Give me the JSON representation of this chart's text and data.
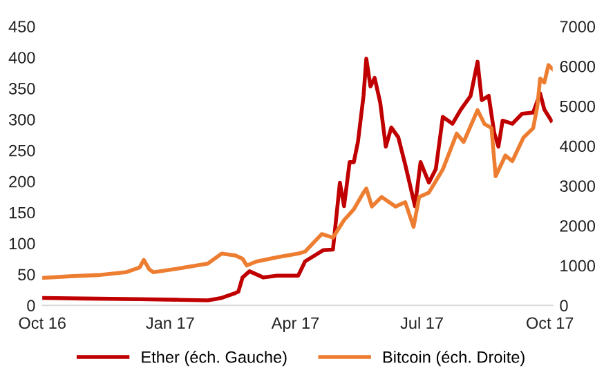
{
  "chart_data": {
    "type": "line",
    "legend": "bottom",
    "grid": false,
    "marker": "none",
    "line_style": "solid",
    "xlim": [
      "2016-10-01",
      "2017-10-03"
    ],
    "xticks": [
      {
        "value": "2016-10-01",
        "label": "Oct 16"
      },
      {
        "value": "2017-01-01",
        "label": "Jan 17"
      },
      {
        "value": "2017-04-01",
        "label": "Apr 17"
      },
      {
        "value": "2017-07-01",
        "label": "Jul 17"
      },
      {
        "value": "2017-10-01",
        "label": "Oct 17"
      }
    ],
    "ylim": [
      0,
      450
    ],
    "yticks": [
      0,
      50,
      100,
      150,
      200,
      250,
      300,
      350,
      400,
      450
    ],
    "y2lim": [
      0,
      7000
    ],
    "y2ticks": [
      0,
      1000,
      2000,
      3000,
      4000,
      5000,
      6000,
      7000
    ],
    "series": [
      {
        "name": "Ether (éch. Gauche)",
        "color": "#c00000",
        "axis": "y",
        "x": [
          "2016-10-01",
          "2016-10-31",
          "2016-12-10",
          "2017-01-08",
          "2017-01-28",
          "2017-02-07",
          "2017-02-17",
          "2017-02-19",
          "2017-02-22",
          "2017-02-27",
          "2017-03-09",
          "2017-03-19",
          "2017-03-31",
          "2017-04-03",
          "2017-04-08",
          "2017-04-21",
          "2017-04-28",
          "2017-05-03",
          "2017-05-06",
          "2017-05-10",
          "2017-05-13",
          "2017-05-16",
          "2017-05-20",
          "2017-05-22",
          "2017-05-25",
          "2017-05-28",
          "2017-06-01",
          "2017-06-05",
          "2017-06-09",
          "2017-06-14",
          "2017-06-19",
          "2017-06-26",
          "2017-06-30",
          "2017-07-06",
          "2017-07-11",
          "2017-07-16",
          "2017-07-23",
          "2017-07-29",
          "2017-08-05",
          "2017-08-10",
          "2017-08-13",
          "2017-08-18",
          "2017-08-22",
          "2017-08-25",
          "2017-08-28",
          "2017-09-04",
          "2017-09-11",
          "2017-09-19",
          "2017-09-24",
          "2017-09-27",
          "2017-10-02"
        ],
        "values": [
          12,
          11,
          10,
          9,
          8,
          12,
          20,
          22,
          45,
          55,
          45,
          48,
          48,
          48,
          71,
          89,
          90,
          198,
          160,
          231,
          231,
          264,
          338,
          398,
          353,
          367,
          327,
          256,
          287,
          271,
          227,
          160,
          231,
          198,
          220,
          304,
          293,
          316,
          338,
          393,
          331,
          338,
          278,
          256,
          298,
          293,
          309,
          311,
          342,
          316,
          298
        ]
      },
      {
        "name": "Bitcoin (éch. Droite)",
        "color": "#ed7d31",
        "axis": "y2",
        "x": [
          "2016-10-01",
          "2016-10-21",
          "2016-11-10",
          "2016-11-30",
          "2016-12-10",
          "2016-12-13",
          "2016-12-17",
          "2016-12-20",
          "2017-01-08",
          "2017-01-28",
          "2017-02-07",
          "2017-02-17",
          "2017-02-22",
          "2017-02-25",
          "2017-03-04",
          "2017-03-19",
          "2017-04-03",
          "2017-04-08",
          "2017-04-20",
          "2017-04-28",
          "2017-05-06",
          "2017-05-13",
          "2017-05-20",
          "2017-05-22",
          "2017-05-26",
          "2017-06-02",
          "2017-06-12",
          "2017-06-19",
          "2017-06-25",
          "2017-06-29",
          "2017-07-06",
          "2017-07-16",
          "2017-07-26",
          "2017-07-31",
          "2017-08-10",
          "2017-08-15",
          "2017-08-20",
          "2017-08-23",
          "2017-08-30",
          "2017-09-04",
          "2017-09-12",
          "2017-09-19",
          "2017-09-22",
          "2017-09-24",
          "2017-09-27",
          "2017-09-30",
          "2017-10-03"
        ],
        "values": [
          690,
          730,
          760,
          830,
          950,
          1140,
          900,
          830,
          930,
          1050,
          1300,
          1250,
          1170,
          1000,
          1100,
          1210,
          1300,
          1350,
          1790,
          1700,
          2140,
          2410,
          2830,
          2930,
          2480,
          2720,
          2480,
          2590,
          1970,
          2720,
          2830,
          3410,
          4310,
          4100,
          4900,
          4550,
          4450,
          3240,
          3760,
          3620,
          4210,
          4450,
          5000,
          5690,
          5590,
          6030,
          5930
        ]
      }
    ]
  }
}
